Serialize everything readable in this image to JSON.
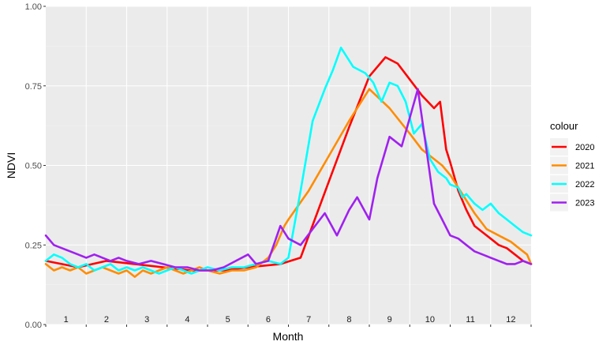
{
  "chart_data": {
    "type": "line",
    "xlabel": "Month",
    "ylabel": "NDVI",
    "xlim": [
      0,
      12
    ],
    "ylim": [
      0,
      1
    ],
    "x_tick_labels": [
      "1",
      "2",
      "3",
      "4",
      "5",
      "6",
      "7",
      "8",
      "9",
      "10",
      "11",
      "12"
    ],
    "y_ticks": [
      0,
      0.25,
      0.5,
      0.75,
      1
    ],
    "y_tick_labels": [
      "0.00",
      "0.25",
      "0.50",
      "0.75",
      "1.00"
    ],
    "grid": true,
    "legend": {
      "title": "colour",
      "placement": "right"
    },
    "series": [
      {
        "name": "2020",
        "color": "#ff0000",
        "x": [
          0.0,
          0.8,
          1.5,
          2.2,
          2.9,
          3.6,
          4.4,
          5.0,
          5.8,
          6.3,
          7.0,
          7.5,
          8.0,
          8.4,
          8.7,
          9.0,
          9.3,
          9.6,
          9.75,
          9.9,
          10.0,
          10.2,
          10.4,
          10.6,
          10.8,
          11.0,
          11.2,
          11.4,
          11.6,
          11.8,
          12.0
        ],
        "y": [
          0.2,
          0.18,
          0.2,
          0.19,
          0.18,
          0.17,
          0.17,
          0.18,
          0.19,
          0.21,
          0.45,
          0.62,
          0.78,
          0.84,
          0.82,
          0.77,
          0.72,
          0.68,
          0.7,
          0.55,
          0.51,
          0.42,
          0.36,
          0.31,
          0.29,
          0.27,
          0.25,
          0.24,
          0.22,
          0.2,
          0.19
        ]
      },
      {
        "name": "2021",
        "color": "#ff8c00",
        "x": [
          0.0,
          0.2,
          0.4,
          0.6,
          0.8,
          1.0,
          1.2,
          1.4,
          1.6,
          1.8,
          2.0,
          2.2,
          2.4,
          2.6,
          2.8,
          3.0,
          3.2,
          3.4,
          3.6,
          3.8,
          4.0,
          4.3,
          4.6,
          4.9,
          5.2,
          5.5,
          5.7,
          5.9,
          6.0,
          6.5,
          7.0,
          7.5,
          8.0,
          8.5,
          9.0,
          9.3,
          9.6,
          9.8,
          10.0,
          10.3,
          10.6,
          10.9,
          11.2,
          11.5,
          11.7,
          11.9,
          12.0
        ],
        "y": [
          0.19,
          0.17,
          0.18,
          0.17,
          0.18,
          0.16,
          0.17,
          0.18,
          0.17,
          0.16,
          0.17,
          0.15,
          0.17,
          0.16,
          0.17,
          0.18,
          0.17,
          0.16,
          0.17,
          0.18,
          0.17,
          0.16,
          0.17,
          0.17,
          0.18,
          0.21,
          0.25,
          0.31,
          0.33,
          0.42,
          0.53,
          0.64,
          0.74,
          0.68,
          0.6,
          0.55,
          0.52,
          0.5,
          0.47,
          0.41,
          0.35,
          0.3,
          0.28,
          0.26,
          0.24,
          0.22,
          0.19
        ]
      },
      {
        "name": "2022",
        "color": "#00ffff",
        "x": [
          0.0,
          0.2,
          0.4,
          0.6,
          0.8,
          1.0,
          1.2,
          1.4,
          1.6,
          1.8,
          2.0,
          2.2,
          2.4,
          2.6,
          2.8,
          3.0,
          3.2,
          3.4,
          3.6,
          3.8,
          4.0,
          4.3,
          4.6,
          4.9,
          5.2,
          5.5,
          5.8,
          6.0,
          6.3,
          6.6,
          6.9,
          7.1,
          7.3,
          7.6,
          7.9,
          8.1,
          8.3,
          8.5,
          8.7,
          8.9,
          9.1,
          9.3,
          9.5,
          9.7,
          9.9,
          10.0,
          10.2,
          10.3,
          10.4,
          10.6,
          10.8,
          11.0,
          11.2,
          11.4,
          11.6,
          11.8,
          12.0
        ],
        "y": [
          0.2,
          0.22,
          0.21,
          0.19,
          0.18,
          0.19,
          0.17,
          0.18,
          0.19,
          0.17,
          0.18,
          0.17,
          0.18,
          0.17,
          0.16,
          0.17,
          0.18,
          0.17,
          0.16,
          0.17,
          0.18,
          0.17,
          0.18,
          0.18,
          0.19,
          0.2,
          0.19,
          0.21,
          0.42,
          0.64,
          0.74,
          0.8,
          0.87,
          0.81,
          0.79,
          0.76,
          0.7,
          0.76,
          0.75,
          0.7,
          0.6,
          0.63,
          0.52,
          0.48,
          0.46,
          0.44,
          0.43,
          0.4,
          0.41,
          0.38,
          0.36,
          0.38,
          0.35,
          0.33,
          0.31,
          0.29,
          0.28
        ]
      },
      {
        "name": "2023",
        "color": "#a020f0",
        "x": [
          0.0,
          0.2,
          0.4,
          0.6,
          0.8,
          1.0,
          1.2,
          1.4,
          1.6,
          1.8,
          2.0,
          2.3,
          2.6,
          2.9,
          3.2,
          3.5,
          3.8,
          4.1,
          4.4,
          4.7,
          5.0,
          5.2,
          5.5,
          5.8,
          6.0,
          6.3,
          6.6,
          6.9,
          7.2,
          7.5,
          7.7,
          8.0,
          8.2,
          8.5,
          8.8,
          9.0,
          9.2,
          9.4,
          9.6,
          9.8,
          10.0,
          10.2,
          10.4,
          10.6,
          10.8,
          11.0,
          11.2,
          11.4,
          11.6,
          11.8,
          12.0
        ],
        "y": [
          0.28,
          0.25,
          0.24,
          0.23,
          0.22,
          0.21,
          0.22,
          0.21,
          0.2,
          0.21,
          0.2,
          0.19,
          0.2,
          0.19,
          0.18,
          0.18,
          0.17,
          0.17,
          0.18,
          0.2,
          0.22,
          0.19,
          0.2,
          0.31,
          0.27,
          0.25,
          0.3,
          0.35,
          0.28,
          0.36,
          0.4,
          0.33,
          0.46,
          0.59,
          0.56,
          0.65,
          0.74,
          0.56,
          0.38,
          0.33,
          0.28,
          0.27,
          0.25,
          0.23,
          0.22,
          0.21,
          0.2,
          0.19,
          0.19,
          0.2,
          0.19
        ]
      }
    ]
  }
}
